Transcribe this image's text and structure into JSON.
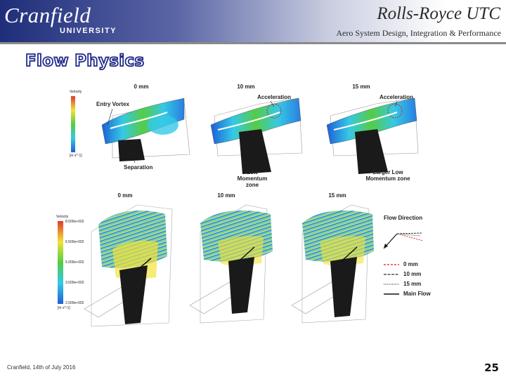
{
  "header": {
    "logo_name": "Cranfield",
    "logo_sub": "UNIVERSITY",
    "org": "Rolls-Royce UTC",
    "subtitle": "Aero System Design, Integration & Performance"
  },
  "title": "Flow Physics",
  "top_row": {
    "panels": [
      "0 mm",
      "10 mm",
      "15 mm"
    ],
    "legend_title": "Velocity",
    "legend_unit": "[m s^-1]",
    "annotations": {
      "entry_vortex": "Entry Vortex",
      "separation": "Separation",
      "acceleration": "Acceleration",
      "low_momentum": "Low Momentum zone",
      "larger_low_momentum": "Larger Low Momentum zone"
    }
  },
  "bottom_row": {
    "panels": [
      "0 mm",
      "10 mm",
      "15 mm"
    ],
    "legend_title": "Velocity",
    "legend_ticks": [
      "8.000e+002",
      "6.500e+002",
      "5.000e+002",
      "3.500e+002",
      "2.000e+002"
    ],
    "legend_unit": "[m s^-1]",
    "flow_direction_title": "Flow Direction",
    "flow_legend": [
      "0 mm",
      "10 mm",
      "15 mm",
      "Main Flow"
    ]
  },
  "colors": {
    "header_dark": "#1f2e7a",
    "title_outline": "#1f2a8a",
    "red_dash": "#d42020",
    "contour_blue": "#1e5fd6",
    "contour_cyan": "#35c9e6",
    "contour_green": "#55cc44",
    "contour_yellow": "#f2e23a",
    "contour_red": "#e03a2a"
  },
  "footer": {
    "text": "Cranfield, 14th of July 2016",
    "page_number": "25"
  }
}
